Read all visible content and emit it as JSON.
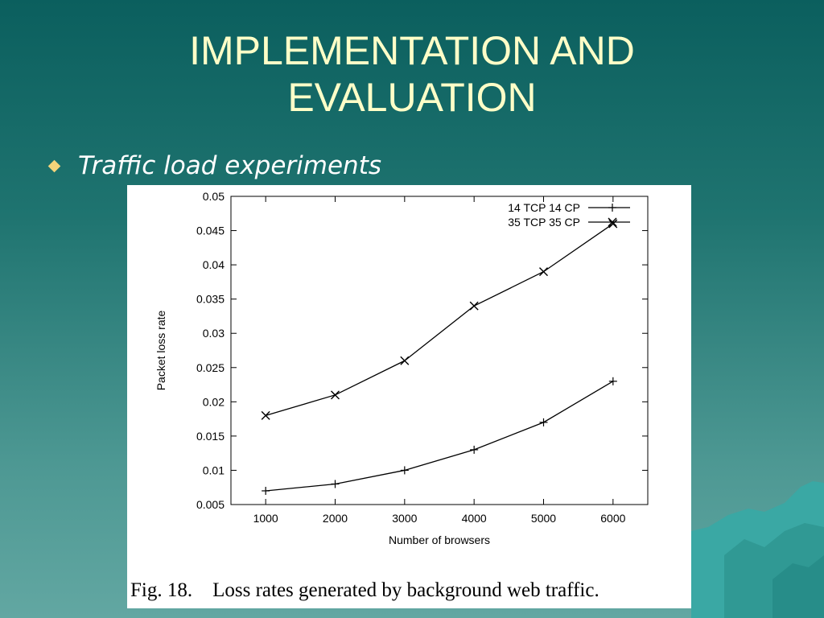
{
  "slide": {
    "title_line1": "IMPLEMENTATION AND",
    "title_line2": "EVALUATION",
    "bullet_text": "Traffic load experiments",
    "bullet_icon": "diamond-bullet-icon",
    "title_color": "#ffffc8",
    "bullet_color": "#f4d47a"
  },
  "figure": {
    "caption_label": "Fig. 18.",
    "caption_text": "Loss rates generated by background web traffic."
  },
  "chart_data": {
    "type": "line",
    "xlabel": "Number of browsers",
    "ylabel": "Packet loss rate",
    "x": [
      1000,
      2000,
      3000,
      4000,
      5000,
      6000
    ],
    "xticks": [
      "1000",
      "2000",
      "3000",
      "4000",
      "5000",
      "6000"
    ],
    "yticks": [
      "0.005",
      "0.01",
      "0.015",
      "0.02",
      "0.025",
      "0.03",
      "0.035",
      "0.04",
      "0.045",
      "0.05"
    ],
    "xlim": [
      500,
      6500
    ],
    "ylim": [
      0.005,
      0.05
    ],
    "grid": false,
    "legend_position": "top-right",
    "series": [
      {
        "name": "14 TCP 14 CP",
        "marker": "+",
        "values": [
          0.007,
          0.008,
          0.01,
          0.013,
          0.017,
          0.023
        ]
      },
      {
        "name": "35 TCP 35 CP",
        "marker": "x",
        "values": [
          0.018,
          0.021,
          0.026,
          0.034,
          0.039,
          0.046
        ]
      }
    ]
  }
}
